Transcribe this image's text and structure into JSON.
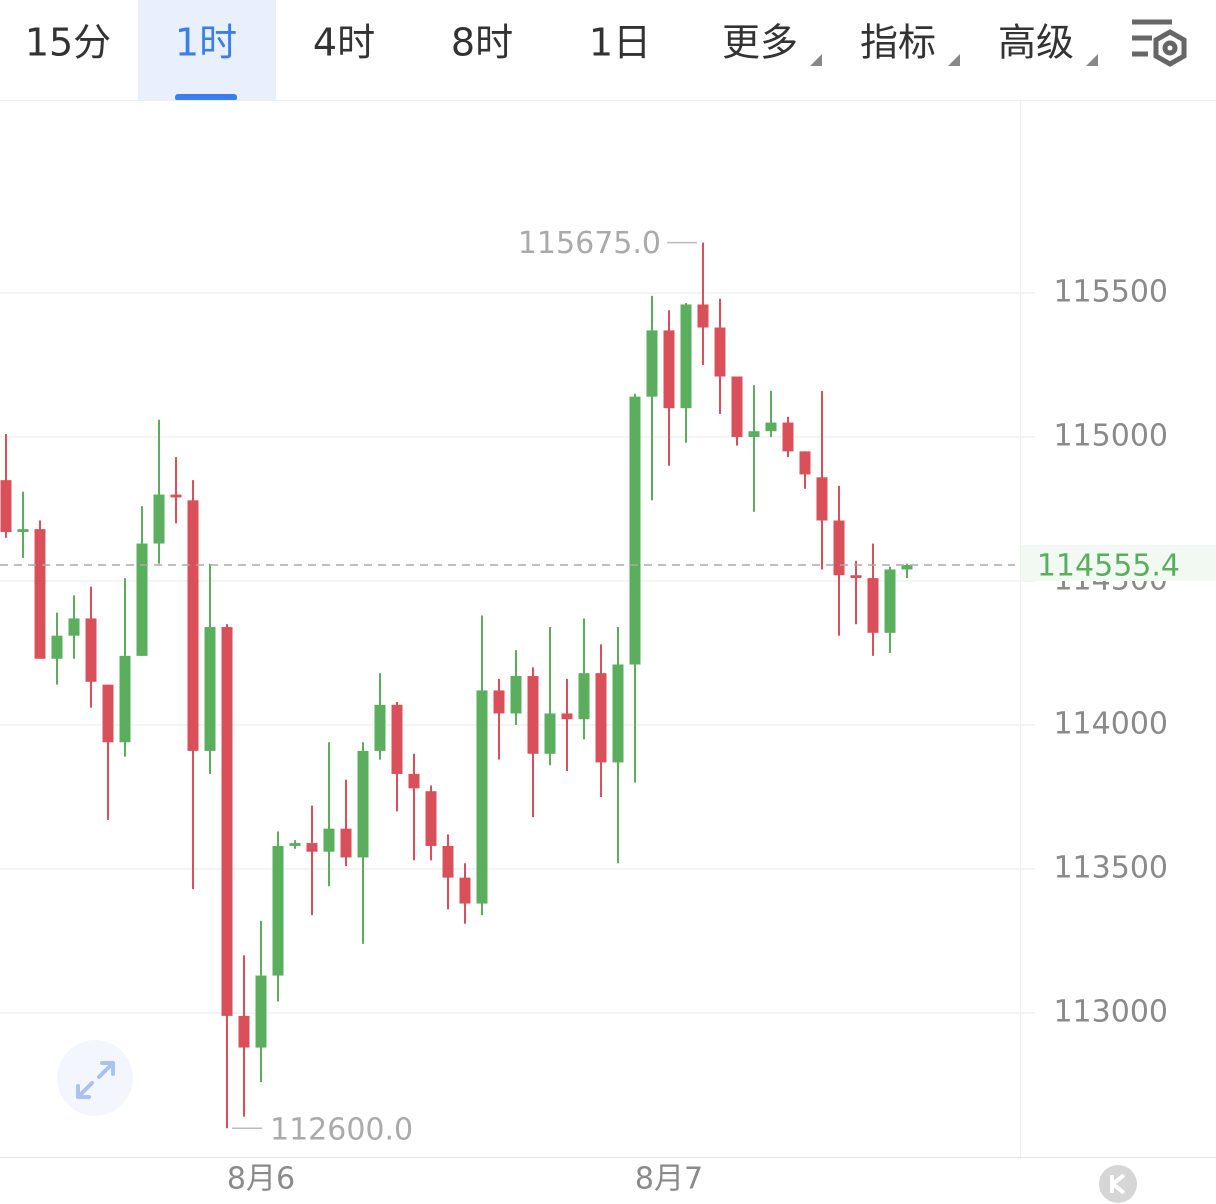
{
  "toolbar": {
    "tabs": [
      "15分",
      "1时",
      "4时",
      "8时",
      "1日",
      "更多",
      "指标",
      "高级"
    ]
  },
  "chart_data": {
    "type": "candlestick",
    "categories": [
      null,
      null,
      null,
      null,
      null,
      null,
      null,
      null,
      null,
      null,
      null,
      null,
      null,
      null,
      null,
      "8月6",
      null,
      null,
      null,
      null,
      null,
      null,
      null,
      null,
      null,
      null,
      null,
      null,
      null,
      null,
      null,
      null,
      null,
      null,
      null,
      null,
      null,
      null,
      null,
      "8月7",
      null,
      null,
      null,
      null,
      null,
      null,
      null,
      null,
      null,
      null,
      null,
      null,
      null,
      null
    ],
    "open": [
      114850,
      114670,
      114680,
      114230,
      114310,
      114370,
      114140,
      113940,
      114240,
      114630,
      114800,
      114780,
      113910,
      114340,
      112990,
      112880,
      113130,
      113580,
      113590,
      113560,
      113640,
      113540,
      113910,
      114070,
      113830,
      113770,
      113580,
      113470,
      113380,
      114120,
      114040,
      114170,
      113900,
      114040,
      114020,
      114180,
      113870,
      114210,
      115140,
      115370,
      115100,
      115460,
      115380,
      115210,
      115000,
      115020,
      115050,
      114950,
      114860,
      114710,
      114520,
      114510,
      114320,
      114540
    ],
    "high": [
      115010,
      114810,
      114710,
      114390,
      114450,
      114480,
      114140,
      114510,
      114760,
      115060,
      114930,
      114850,
      114560,
      114350,
      113200,
      113320,
      113630,
      113600,
      113720,
      113940,
      113810,
      113940,
      114180,
      114080,
      113900,
      113790,
      113620,
      113520,
      114380,
      114160,
      114260,
      114200,
      114340,
      114160,
      114370,
      114280,
      114340,
      115150,
      115490,
      115440,
      115465,
      115675,
      115480,
      115210,
      115180,
      115160,
      115070,
      114950,
      115160,
      114830,
      114570,
      114630,
      114550,
      114560
    ],
    "low": [
      114650,
      114580,
      114230,
      114140,
      114230,
      114060,
      113670,
      113890,
      114240,
      114560,
      114700,
      113430,
      113830,
      112600,
      112640,
      112760,
      113040,
      113570,
      113340,
      113440,
      113510,
      113240,
      113880,
      113700,
      113530,
      113530,
      113360,
      113310,
      113340,
      113880,
      114000,
      113680,
      113860,
      113840,
      113950,
      113750,
      113520,
      113800,
      114780,
      114900,
      114980,
      115250,
      115080,
      114970,
      114740,
      115000,
      114930,
      114820,
      114540,
      114310,
      114350,
      114240,
      114250,
      114510
    ],
    "close": [
      114670,
      114680,
      114230,
      114310,
      114370,
      114150,
      113940,
      114240,
      114630,
      114800,
      114790,
      113910,
      114340,
      112990,
      112880,
      113130,
      113580,
      113590,
      113560,
      113640,
      113540,
      113910,
      114070,
      113830,
      113780,
      113580,
      113470,
      113380,
      114120,
      114040,
      114170,
      113900,
      114040,
      114020,
      114180,
      113870,
      114210,
      115140,
      115370,
      115100,
      115460,
      115380,
      115210,
      115000,
      115020,
      115050,
      114950,
      114870,
      114710,
      114520,
      114510,
      114320,
      114540,
      114555.4
    ],
    "up_color": "#5aae5e",
    "down_color": "#d9505a",
    "ylim": [
      112500,
      116170
    ],
    "yticks": [
      113000,
      113500,
      114000,
      114500,
      115000,
      115500
    ],
    "grid": true,
    "high_label": {
      "value": 115675,
      "label": "115675.0"
    },
    "low_label": {
      "value": 112600,
      "label": "112600.0"
    },
    "last_price": {
      "value": 114555.4,
      "label": "114555.4"
    }
  }
}
